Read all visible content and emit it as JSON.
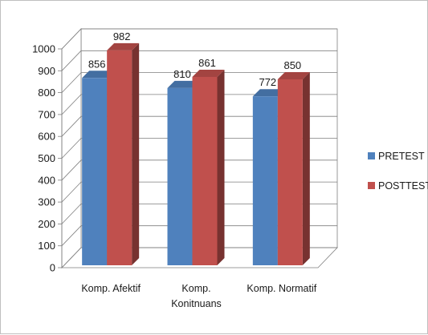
{
  "chart_data": {
    "type": "bar",
    "categories": [
      "Komp. Afektif",
      "Komp. Konitnuans",
      "Komp. Normatif"
    ],
    "category_lines": [
      [
        "Komp. Afektif"
      ],
      [
        "Komp.",
        "Konitnuans"
      ],
      [
        "Komp. Normatif"
      ]
    ],
    "series": [
      {
        "name": "PRETEST",
        "color": "#4f81bd",
        "values": [
          856,
          810,
          772
        ]
      },
      {
        "name": "POSTTEST",
        "color": "#c0504d",
        "values": [
          982,
          861,
          850
        ]
      }
    ],
    "ylim": [
      0,
      1000
    ],
    "yticks": [
      0,
      100,
      200,
      300,
      400,
      500,
      600,
      700,
      800,
      900,
      1000
    ],
    "grid": true,
    "legend": "right",
    "style": "3d-clustered-column"
  }
}
